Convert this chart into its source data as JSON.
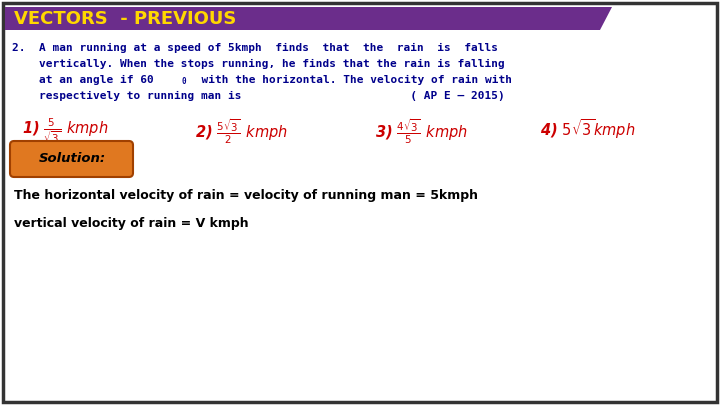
{
  "title": "VECTORS  - PREVIOUS",
  "title_bg_color": "#6B2D8B",
  "title_text_color": "#FFD700",
  "bg_color": "#FFFFFF",
  "border_color": "#333333",
  "question_text_color": "#00008B",
  "options_text_color": "#CC0000",
  "solution_text_color": "#000000",
  "solution_bg_color": "#E07820",
  "solution_border_color": "#A04000",
  "q_line1": "2.  A man running at a speed of 5kmph  finds  that  the  rain  is  falls",
  "q_line2": "    vertically. When the stops running, he finds that the rain is falling",
  "q_line3a": "    at an angle if 60",
  "q_line3b": "  with the horizontal. The velocity of rain with",
  "q_line4": "    respectively to running man is                         ( AP E – 2015)",
  "sol_line1": "The horizontal velocity of rain = velocity of running man = 5kmph",
  "sol_line2": "vertical velocity of rain = V kmph"
}
